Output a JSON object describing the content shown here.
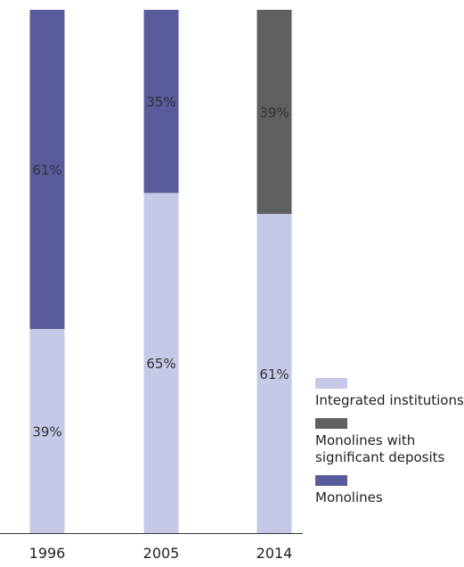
{
  "chart_data": {
    "type": "bar",
    "stacked": true,
    "categories": [
      "1996",
      "2005",
      "2014"
    ],
    "series": [
      {
        "name": "Integrated institutions",
        "color": "#c5c8e6",
        "values": [
          39,
          65,
          61
        ]
      },
      {
        "name": "Monolines with significant deposits",
        "color": "#606060",
        "values": [
          0,
          0,
          39
        ]
      },
      {
        "name": "Monolines",
        "color": "#5a5b9d",
        "values": [
          61,
          35,
          0
        ]
      }
    ],
    "data_labels": [
      [
        "39%",
        "65%",
        "61%"
      ],
      [
        "",
        "",
        "39%"
      ],
      [
        "61%",
        "35%",
        ""
      ]
    ],
    "ylim": [
      0,
      100
    ],
    "grid": false,
    "legend_position": "right"
  }
}
